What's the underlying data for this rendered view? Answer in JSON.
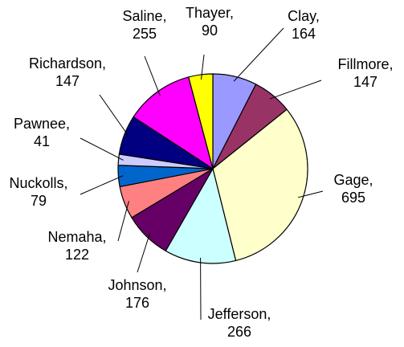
{
  "chart_data": {
    "type": "pie",
    "title": "",
    "start_angle_deg": 0,
    "direction": "clockwise",
    "labels_format": "category_comma_value",
    "slices": [
      {
        "label": "Clay",
        "value": 164,
        "color": "#9999ff"
      },
      {
        "label": "Fillmore",
        "value": 147,
        "color": "#993366"
      },
      {
        "label": "Gage",
        "value": 695,
        "color": "#ffffcc"
      },
      {
        "label": "Jefferson",
        "value": 266,
        "color": "#ccffff"
      },
      {
        "label": "Johnson",
        "value": 176,
        "color": "#660066"
      },
      {
        "label": "Nemaha",
        "value": 122,
        "color": "#ff8080"
      },
      {
        "label": "Nuckolls",
        "value": 79,
        "color": "#0066cc"
      },
      {
        "label": "Pawnee",
        "value": 41,
        "color": "#ccccff"
      },
      {
        "label": "Richardson",
        "value": 147,
        "color": "#000080"
      },
      {
        "label": "Saline",
        "value": 255,
        "color": "#ff00ff"
      },
      {
        "label": "Thayer",
        "value": 90,
        "color": "#ffff00"
      }
    ]
  }
}
